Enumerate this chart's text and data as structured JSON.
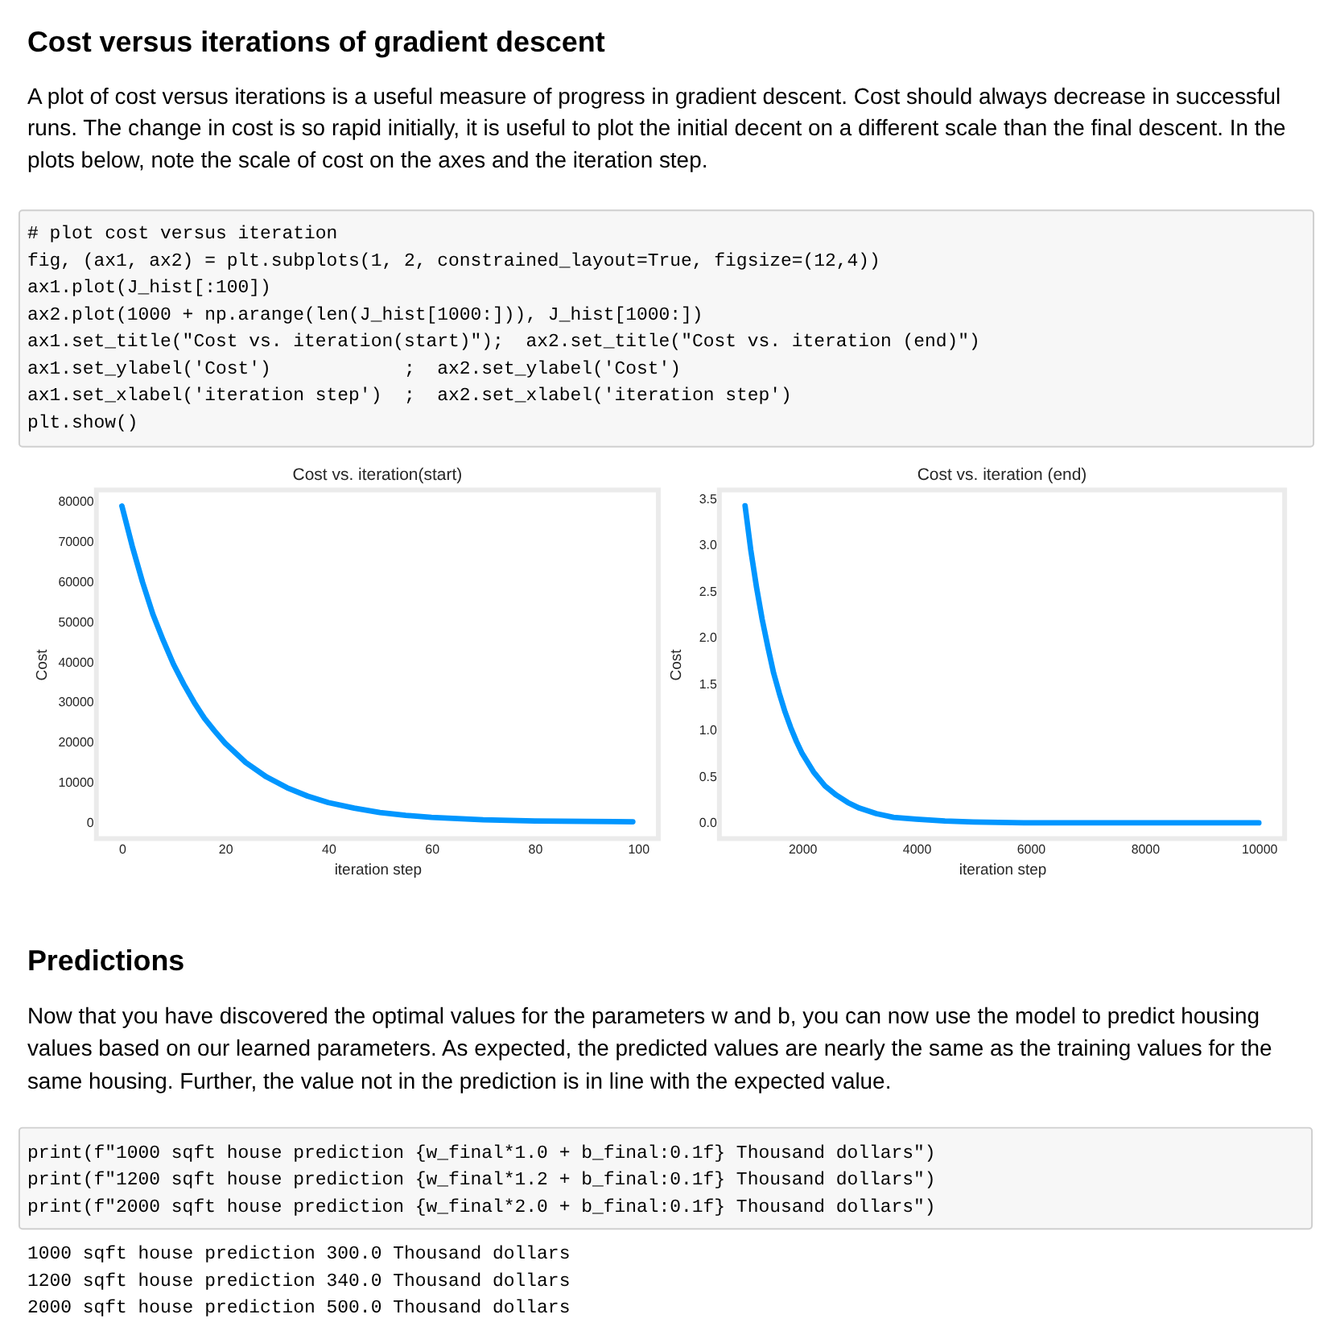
{
  "chart_data": [
    {
      "type": "other",
      "title": "Cost versus iterations of gradient descent",
      "annotations": [
        "A plot of cost versus iterations is a useful measure of progress in gradient descent. Cost should always decrease in successful",
        "runs. The change in cost is so rapid initially, it is useful to plot the initial decent on a different scale than the final descent. In the",
        "plots below, note the scale of cost on the axes and the iteration step."
      ]
    },
    {
      "type": "other",
      "annotations": [
        "# plot cost versus iteration",
        "fig, (ax1, ax2) = plt.subplots(1, 2, constrained_layout=True, figsize=(12,4))",
        "ax1.plot(J_hist[:100])",
        "ax2.plot(1000 + np.arange(len(J_hist[1000:])), J_hist[1000:])",
        "ax1.set_title(\"Cost vs. iteration(start)\");  ax2.set_title(\"Cost vs. iteration (end)\")",
        "ax1.set_ylabel('Cost')            ;  ax2.set_ylabel('Cost')",
        "ax1.set_xlabel('iteration step')  ;  ax2.set_xlabel('iteration step')",
        "plt.show()"
      ]
    },
    {
      "type": "line",
      "title": "Cost vs. iteration(start)",
      "xlabel": "iteration step",
      "ylabel": "Cost",
      "x": [
        0,
        2,
        4,
        6,
        8,
        10,
        12,
        14,
        16,
        18,
        20,
        24,
        28,
        32,
        36,
        40,
        45,
        50,
        55,
        60,
        70,
        80,
        90,
        99
      ],
      "series": [
        {
          "color": "#0096ff",
          "values": [
            79000,
            69000,
            60000,
            52000,
            45500,
            39500,
            34500,
            30000,
            26000,
            22800,
            19800,
            15000,
            11400,
            8700,
            6600,
            5000,
            3600,
            2500,
            1800,
            1300,
            700,
            400,
            300,
            200
          ]
        }
      ],
      "xlim": [
        -4.95,
        103.95
      ],
      "ylim": [
        -4000,
        83000
      ],
      "xticks": [
        0,
        20,
        40,
        60,
        80,
        100
      ],
      "yticks": [
        0,
        10000,
        20000,
        30000,
        40000,
        50000,
        60000,
        70000,
        80000
      ]
    },
    {
      "type": "line",
      "title": "Cost vs. iteration (end)",
      "xlabel": "iteration step",
      "ylabel": "Cost",
      "x": [
        1000,
        1100,
        1200,
        1300,
        1400,
        1500,
        1600,
        1700,
        1800,
        1900,
        2000,
        2200,
        2400,
        2600,
        2800,
        3000,
        3300,
        3600,
        4000,
        4500,
        5000,
        6000,
        7000,
        8000,
        9000,
        9999
      ],
      "series": [
        {
          "color": "#0096ff",
          "values": [
            3.43,
            2.95,
            2.55,
            2.2,
            1.9,
            1.62,
            1.4,
            1.2,
            1.03,
            0.88,
            0.75,
            0.55,
            0.4,
            0.3,
            0.22,
            0.16,
            0.1,
            0.06,
            0.04,
            0.02,
            0.01,
            0,
            0,
            0,
            0,
            0
          ]
        }
      ],
      "xlim": [
        550,
        10450
      ],
      "ylim": [
        -0.17,
        3.6
      ],
      "xticks": [
        2000,
        4000,
        6000,
        8000,
        10000
      ],
      "yticks": [
        {
          "value": 0,
          "label": "0.0"
        },
        0.5,
        {
          "value": 1,
          "label": "1.0"
        },
        1.5,
        {
          "value": 2,
          "label": "2.0"
        },
        2.5,
        {
          "value": 3,
          "label": "3.0"
        },
        3.5
      ]
    },
    {
      "type": "other",
      "title": "Predictions",
      "annotations": [
        "Now that you have discovered the optimal values for the parameters w and b, you can now use the model to predict housing",
        "values based on our learned parameters. As expected, the predicted values are nearly the same as the training values for the",
        "same housing. Further, the value not in the prediction is in line with the expected value."
      ]
    },
    {
      "type": "other",
      "annotations": [
        "print(f\"1000 sqft house prediction {w_final*1.0 + b_final:0.1f} Thousand dollars\")",
        "print(f\"1200 sqft house prediction {w_final*1.2 + b_final:0.1f} Thousand dollars\")",
        "print(f\"2000 sqft house prediction {w_final*2.0 + b_final:0.1f} Thousand dollars\")"
      ]
    },
    {
      "type": "other",
      "annotations": [
        "1000 sqft house prediction 300.0 Thousand dollars",
        "1200 sqft house prediction 340.0 Thousand dollars",
        "2000 sqft house prediction 500.0 Thousand dollars"
      ]
    }
  ]
}
